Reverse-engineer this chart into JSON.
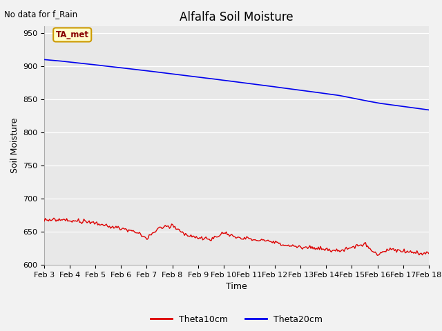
{
  "title": "Alfalfa Soil Moisture",
  "subtitle": "No data for f_Rain",
  "xlabel": "Time",
  "ylabel": "Soil Moisture",
  "ylim": [
    600,
    960
  ],
  "yticks": [
    600,
    650,
    700,
    750,
    800,
    850,
    900,
    950
  ],
  "xtick_labels": [
    "Feb 3",
    "Feb 4",
    "Feb 5",
    "Feb 6",
    "Feb 7",
    "Feb 8",
    "Feb 9",
    "Feb 10",
    "Feb 11",
    "Feb 12",
    "Feb 13",
    "Feb 14",
    "Feb 15",
    "Feb 16",
    "Feb 17",
    "Feb 18"
  ],
  "fig_bg_color": "#f2f2f2",
  "plot_bg_color": "#e8e8e8",
  "line_red_color": "#dd0000",
  "line_blue_color": "#0000ee",
  "legend_labels": [
    "Theta10cm",
    "Theta20cm"
  ],
  "ta_met_label": "TA_met",
  "ta_met_box_color": "#ffffcc",
  "ta_met_box_border": "#cc9900",
  "title_fontsize": 12,
  "label_fontsize": 9,
  "tick_fontsize": 8
}
